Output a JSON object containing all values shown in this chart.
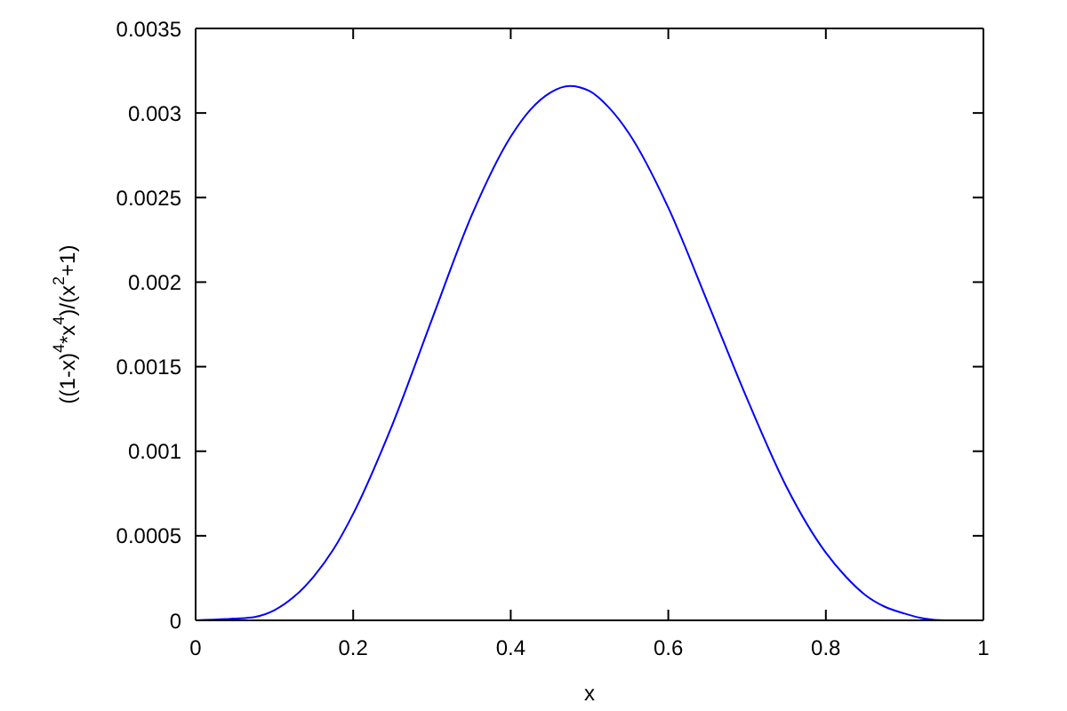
{
  "chart_data": {
    "type": "line",
    "xlabel": "x",
    "ylabel": "((1-x)$^{4}$*x$^{4}$)/(x$^{2}$+1)",
    "x": [
      0,
      0.05,
      0.075,
      0.1,
      0.125,
      0.15,
      0.175,
      0.2,
      0.25,
      0.3,
      0.35,
      0.4,
      0.425,
      0.45,
      0.475,
      0.5,
      0.525,
      0.55,
      0.6,
      0.65,
      0.7,
      0.75,
      0.8,
      0.825,
      0.85,
      0.875,
      0.9,
      0.925,
      0.95,
      1
    ],
    "series": [
      {
        "color": "#0000ff",
        "values": [
          0,
          1e-05,
          2e-05,
          6e-05,
          0.00014,
          0.00026,
          0.00042,
          0.00063,
          0.00116,
          0.00178,
          0.00239,
          0.00286,
          0.00302,
          0.00312,
          0.00316,
          0.00313,
          0.00303,
          0.00288,
          0.00244,
          0.00188,
          0.00131,
          0.00079,
          0.0004,
          0.00026,
          0.00015,
          8e-05,
          4e-05,
          1e-05,
          0,
          0
        ]
      }
    ],
    "xlim": [
      0,
      1
    ],
    "xticks": [
      0,
      0.2,
      0.4,
      0.6,
      0.8,
      1
    ],
    "ylim": [
      0,
      0.0035
    ],
    "yticks": [
      0,
      0.0005,
      0.001,
      0.0015,
      0.002,
      0.0025,
      0.003,
      0.0035
    ],
    "marker": "none",
    "line_style": "solid"
  }
}
